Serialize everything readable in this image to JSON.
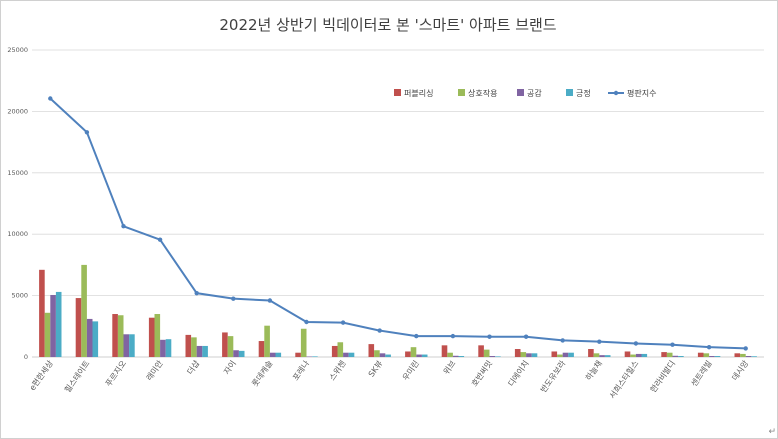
{
  "chart_data": {
    "type": "bar",
    "title": "2022년 상반기 빅데이터로 본 '스마트' 아파트 브랜드",
    "categories": [
      "e편한세상",
      "힐스테이트",
      "푸르지오",
      "래미안",
      "더샵",
      "자이",
      "롯데캐슬",
      "포레나",
      "스위첸",
      "SK뷰",
      "우미린",
      "위브",
      "호반써밋",
      "디에이치",
      "반도유보라",
      "하늘채",
      "서희스타힐스",
      "한라비발디",
      "센트레빌",
      "데시앙"
    ],
    "ylim": [
      0,
      25000
    ],
    "yticks": [
      0,
      5000,
      10000,
      15000,
      20000,
      25000
    ],
    "grid": true,
    "legend_position": "top-right",
    "series": [
      {
        "name": "퍼블리싱",
        "type": "bar",
        "color": "#c0504d",
        "values": [
          7100,
          4800,
          3500,
          3200,
          1800,
          2000,
          1300,
          350,
          900,
          1050,
          450,
          950,
          950,
          650,
          450,
          650,
          450,
          400,
          350,
          300
        ]
      },
      {
        "name": "상호작용",
        "type": "bar",
        "color": "#9bbb59",
        "values": [
          3600,
          7500,
          3400,
          3500,
          1600,
          1700,
          2550,
          2300,
          1200,
          550,
          800,
          350,
          600,
          400,
          200,
          300,
          200,
          350,
          300,
          250
        ]
      },
      {
        "name": "공감",
        "type": "bar",
        "color": "#8064a2",
        "values": [
          5050,
          3100,
          1850,
          1400,
          900,
          550,
          350,
          40,
          350,
          300,
          200,
          100,
          80,
          300,
          350,
          150,
          250,
          100,
          80,
          80
        ]
      },
      {
        "name": "긍정",
        "type": "bar",
        "color": "#4bacc6",
        "values": [
          5300,
          2900,
          1850,
          1450,
          900,
          500,
          350,
          50,
          350,
          200,
          200,
          80,
          50,
          300,
          350,
          150,
          250,
          80,
          80,
          60
        ]
      },
      {
        "name": "평판지수",
        "type": "line",
        "color": "#4f81bd",
        "values": [
          21050,
          18300,
          10650,
          9550,
          5200,
          4750,
          4600,
          2850,
          2800,
          2150,
          1700,
          1700,
          1650,
          1650,
          1350,
          1250,
          1100,
          1000,
          800,
          700
        ]
      }
    ]
  },
  "colors": {
    "grid": "#d9d9d9",
    "axis": "#bfbfbf"
  }
}
